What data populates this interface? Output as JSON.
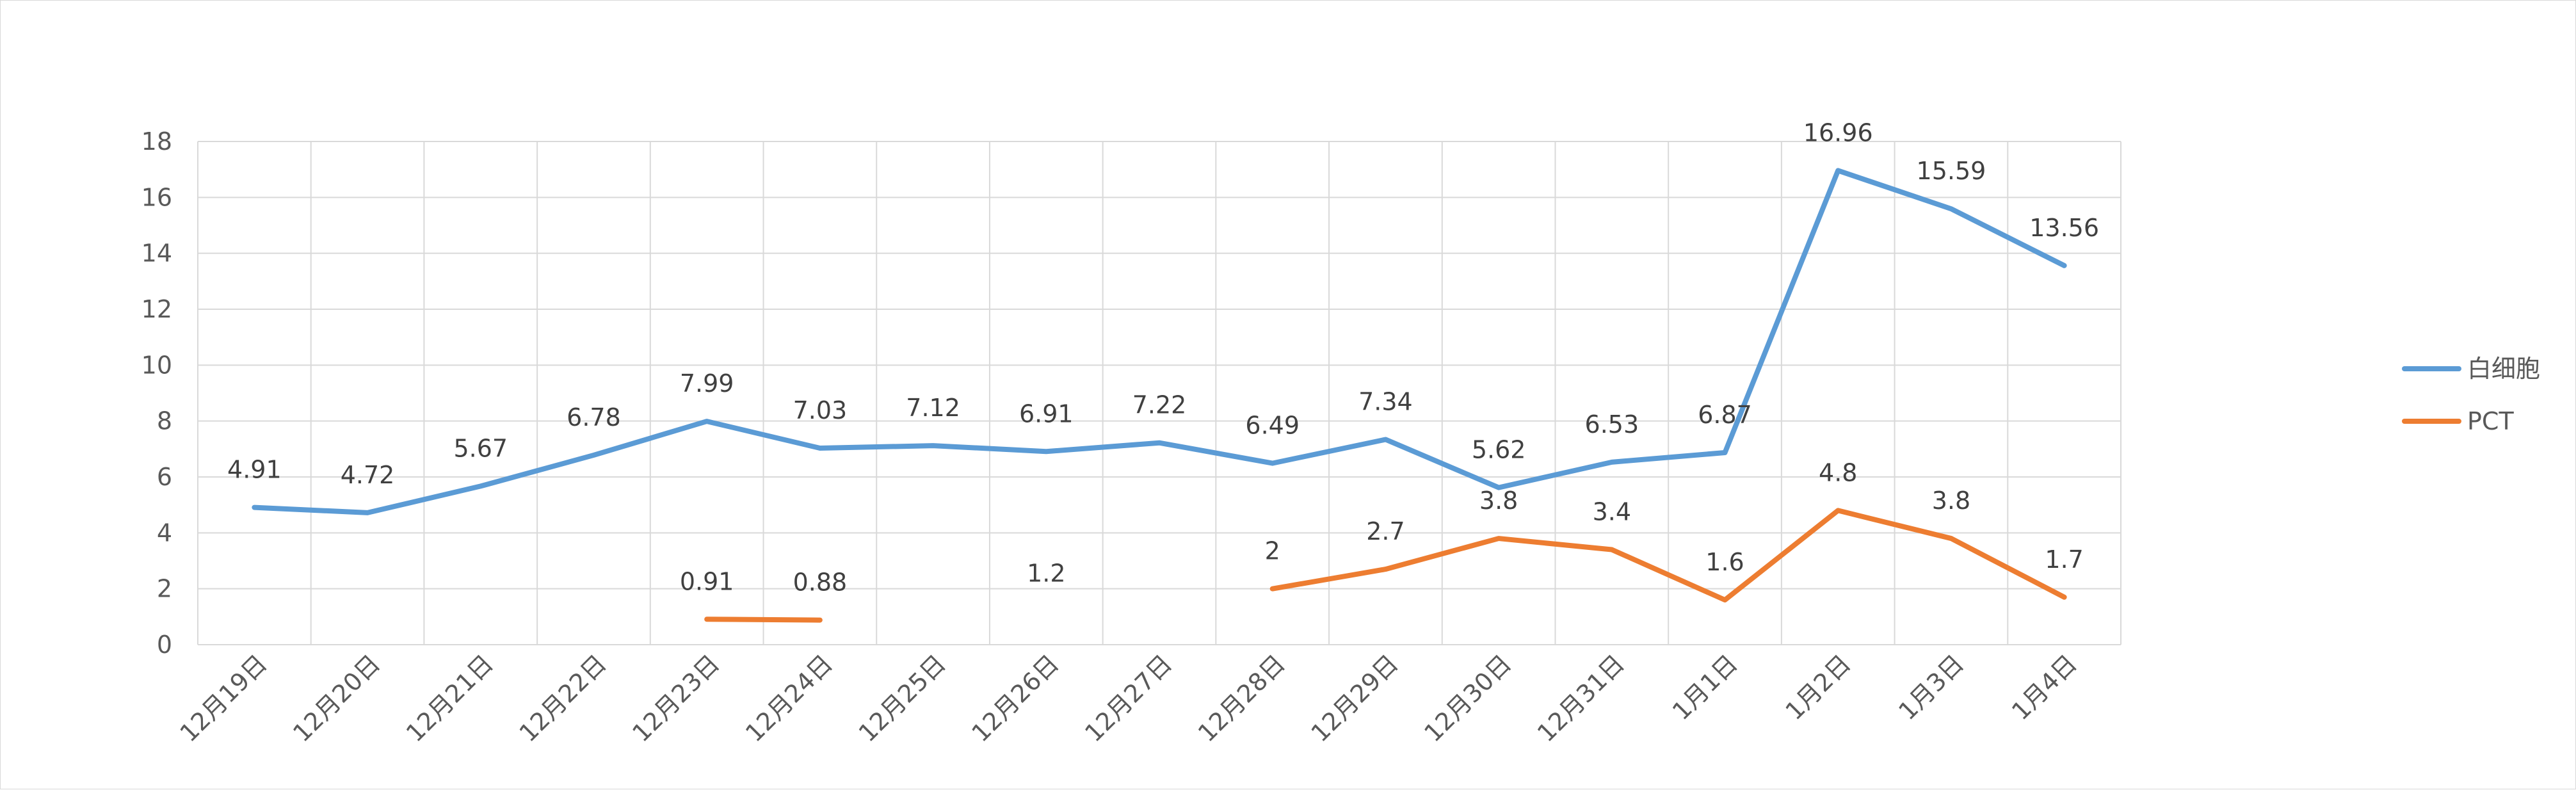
{
  "chart_data": {
    "type": "line",
    "title": "",
    "xlabel": "",
    "ylabel": "",
    "ylim": [
      0,
      18
    ],
    "yticks": [
      "0",
      "2",
      "4",
      "6",
      "8",
      "10",
      "12",
      "14",
      "16",
      "18"
    ],
    "grid": true,
    "legend_position": "right",
    "categories": [
      "12月19日",
      "12月20日",
      "12月21日",
      "12月22日",
      "12月23日",
      "12月24日",
      "12月25日",
      "12月26日",
      "12月27日",
      "12月28日",
      "12月29日",
      "12月30日",
      "12月31日",
      "1月1日",
      "1月2日",
      "1月3日",
      "1月4日"
    ],
    "series": [
      {
        "name": "白细胞",
        "color": "#5b9bd5",
        "values": [
          4.91,
          4.72,
          5.67,
          6.78,
          7.99,
          7.03,
          7.12,
          6.91,
          7.22,
          6.49,
          7.34,
          5.62,
          6.53,
          6.87,
          16.96,
          15.59,
          13.56
        ],
        "labels": [
          "4.91",
          "4.72",
          "5.67",
          "6.78",
          "7.99",
          "7.03",
          "7.12",
          "6.91",
          "7.22",
          "6.49",
          "7.34",
          "5.62",
          "6.53",
          "6.87",
          "16.96",
          "15.59",
          "13.56"
        ]
      },
      {
        "name": "PCT",
        "color": "#ed7d31",
        "values": [
          null,
          null,
          null,
          null,
          0.91,
          0.88,
          null,
          1.2,
          null,
          2,
          2.7,
          3.8,
          3.4,
          1.6,
          4.8,
          3.8,
          1.7
        ],
        "labels": [
          null,
          null,
          null,
          null,
          "0.91",
          "0.88",
          null,
          "1.2",
          null,
          "2",
          "2.7",
          "3.8",
          "3.4",
          "1.6",
          "4.8",
          "3.8",
          "1.7"
        ]
      }
    ]
  }
}
